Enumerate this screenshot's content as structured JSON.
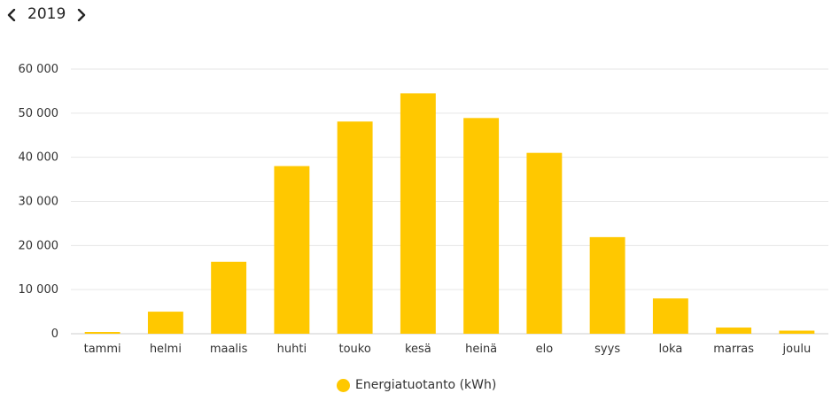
{
  "header": {
    "year": "2019",
    "prev_icon": "chevron-left-icon",
    "next_icon": "chevron-right-icon"
  },
  "colors": {
    "bar": "#ffc800",
    "grid": "#e6e6e6",
    "axis": "#cccccc"
  },
  "chart_data": {
    "type": "bar",
    "title": "",
    "xlabel": "",
    "ylabel": "",
    "categories": [
      "tammi",
      "helmi",
      "maalis",
      "huhti",
      "touko",
      "kesä",
      "heinä",
      "elo",
      "syys",
      "loka",
      "marras",
      "joulu"
    ],
    "series": [
      {
        "name": "Energiatuotanto (kWh)",
        "values": [
          400,
          5000,
          16300,
          38000,
          48100,
          54500,
          48900,
          41000,
          21900,
          8000,
          1400,
          700
        ]
      }
    ],
    "ylim": [
      0,
      60000
    ],
    "yticks": [
      0,
      10000,
      20000,
      30000,
      40000,
      50000,
      60000
    ],
    "ytick_labels": [
      "0",
      "10 000",
      "20 000",
      "30 000",
      "40 000",
      "50 000",
      "60 000"
    ],
    "grid": true,
    "legend_position": "bottom-center"
  }
}
